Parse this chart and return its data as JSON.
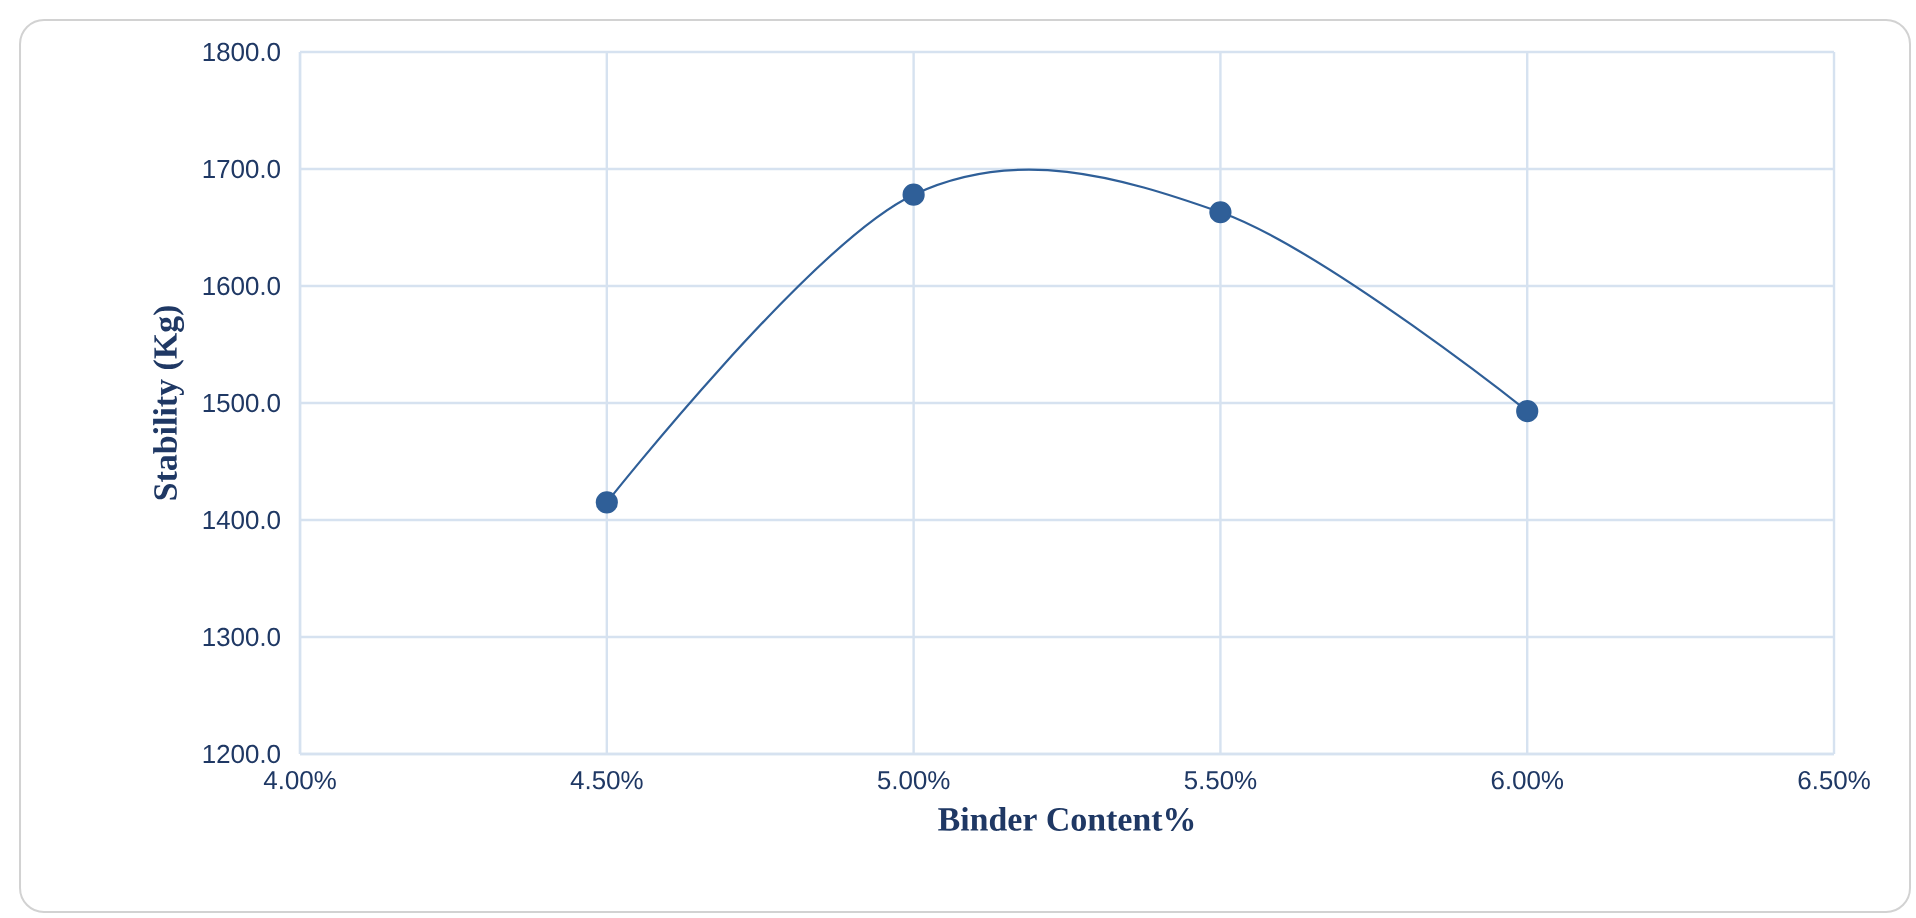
{
  "chart_data": {
    "type": "line",
    "xlabel": "Binder Content%",
    "ylabel": "Stability (Kg)",
    "x": [
      4.5,
      5.0,
      5.5,
      6.0
    ],
    "series": [
      {
        "color": "#2f5f98",
        "values": [
          1415,
          1678,
          1663,
          1493
        ]
      }
    ],
    "xlim": [
      4.0,
      6.5
    ],
    "xticks": [
      {
        "value": 4.0,
        "label": "4.00%"
      },
      {
        "value": 4.5,
        "label": "4.50%"
      },
      {
        "value": 5.0,
        "label": "5.00%"
      },
      {
        "value": 5.5,
        "label": "5.50%"
      },
      {
        "value": 6.0,
        "label": "6.00%"
      },
      {
        "value": 6.5,
        "label": "6.50%"
      }
    ],
    "ylim": [
      1200,
      1800
    ],
    "yticks": [
      {
        "value": 1200,
        "label": "1200.0"
      },
      {
        "value": 1300,
        "label": "1300.0"
      },
      {
        "value": 1400,
        "label": "1400.0"
      },
      {
        "value": 1500,
        "label": "1500.0"
      },
      {
        "value": 1600,
        "label": "1600.0"
      },
      {
        "value": 1700,
        "label": "1700.0"
      },
      {
        "value": 1800,
        "label": "1800.0"
      }
    ],
    "grid": true,
    "marker": "circle",
    "line_style": "solid"
  }
}
